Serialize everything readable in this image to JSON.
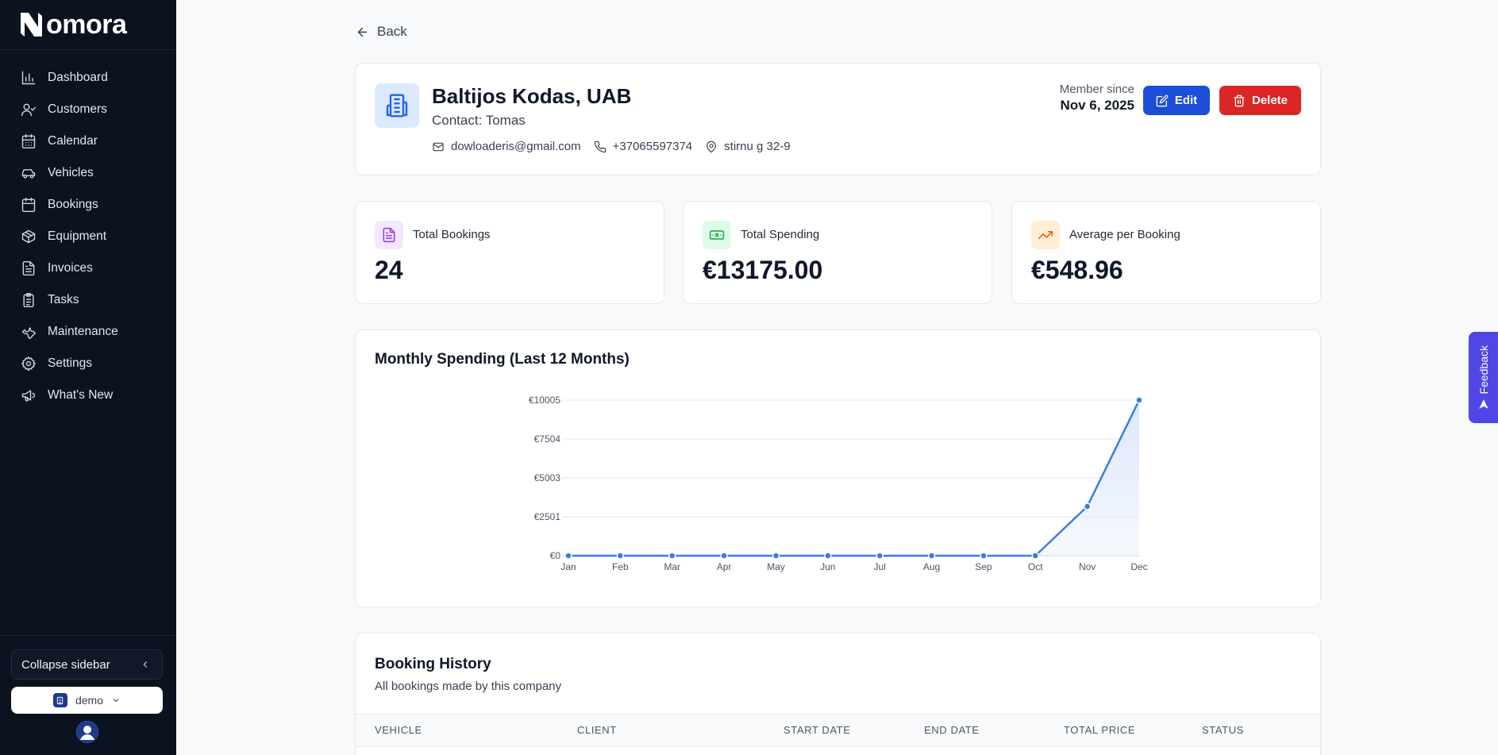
{
  "app": {
    "name": "omora"
  },
  "sidebar": {
    "items": [
      {
        "label": "Dashboard",
        "icon": "bar-chart-icon"
      },
      {
        "label": "Customers",
        "icon": "user-check-icon"
      },
      {
        "label": "Calendar",
        "icon": "calendar-icon"
      },
      {
        "label": "Vehicles",
        "icon": "car-icon"
      },
      {
        "label": "Bookings",
        "icon": "calendar-icon"
      },
      {
        "label": "Equipment",
        "icon": "package-icon"
      },
      {
        "label": "Invoices",
        "icon": "file-text-icon"
      },
      {
        "label": "Tasks",
        "icon": "clipboard-icon"
      },
      {
        "label": "Maintenance",
        "icon": "wrench-icon"
      },
      {
        "label": "Settings",
        "icon": "gear-icon"
      },
      {
        "label": "What's New",
        "icon": "megaphone-icon"
      }
    ],
    "collapse_label": "Collapse sidebar",
    "org_label": "demo"
  },
  "back_label": "Back",
  "company": {
    "name": "Baltijos Kodas, UAB",
    "contact": "Contact: Tomas",
    "email": "dowloaderis@gmail.com",
    "phone": "+37065597374",
    "address": "stirnu g 32-9",
    "member_since_label": "Member since",
    "member_since_date": "Nov 6, 2025",
    "edit_label": "Edit",
    "delete_label": "Delete"
  },
  "stats": [
    {
      "label": "Total Bookings",
      "value": "24",
      "icon": "document-icon",
      "bg": "#f3e8ff",
      "color": "#9333ea"
    },
    {
      "label": "Total Spending",
      "value": "€13175.00",
      "icon": "banknote-icon",
      "bg": "#dcfce7",
      "color": "#16a34a"
    },
    {
      "label": "Average per Booking",
      "value": "€548.96",
      "icon": "trending-up-icon",
      "bg": "#ffedd5",
      "color": "#ea580c"
    }
  ],
  "chart": {
    "title": "Monthly Spending (Last 12 Months)"
  },
  "chart_data": {
    "type": "area",
    "categories": [
      "Jan",
      "Feb",
      "Mar",
      "Apr",
      "May",
      "Jun",
      "Jul",
      "Aug",
      "Sep",
      "Oct",
      "Nov",
      "Dec"
    ],
    "values": [
      0,
      0,
      0,
      0,
      0,
      0,
      0,
      0,
      0,
      0,
      3170,
      10005
    ],
    "ytick_labels": [
      "€0",
      "€2501",
      "€5003",
      "€7504",
      "€10005"
    ],
    "yticks": [
      0,
      2501,
      5003,
      7504,
      10005
    ],
    "ylim": [
      0,
      10005
    ],
    "grid": true,
    "line_color": "#3b7ae8",
    "fill_color": "#dbe7fb"
  },
  "history": {
    "title": "Booking History",
    "subtitle": "All bookings made by this company",
    "columns": [
      "VEHICLE",
      "CLIENT",
      "START DATE",
      "END DATE",
      "TOTAL PRICE",
      "STATUS"
    ]
  },
  "feedback_label": "Feedback"
}
